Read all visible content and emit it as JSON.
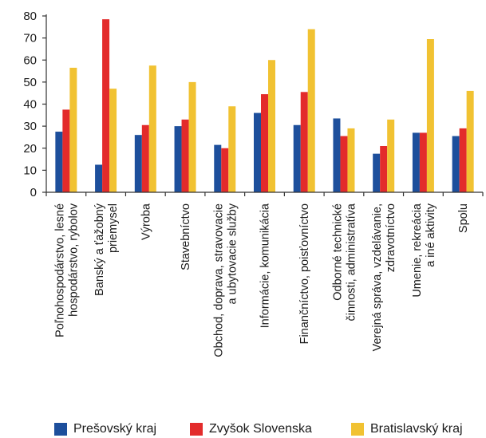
{
  "chart_data": {
    "type": "bar",
    "title": "",
    "xlabel": "",
    "ylabel": "",
    "ylim": [
      0,
      80
    ],
    "yticks": [
      0,
      10,
      20,
      30,
      40,
      50,
      60,
      70,
      80
    ],
    "grid": false,
    "legend_position": "bottom",
    "categories": [
      [
        "Poľnohospodárstvo, lesné",
        "hospodárstvo, rybolov"
      ],
      [
        "Banský a ťažobný",
        "priemysel"
      ],
      [
        "Výroba"
      ],
      [
        "Stavebníctvo"
      ],
      [
        "Obchod, doprava, stravovacie",
        "a ubytovacie služby"
      ],
      [
        "Informácie, komunikácia"
      ],
      [
        "Finančníctvo, poisťovníctvo"
      ],
      [
        "Odborné technické",
        "činnosti, administratíva"
      ],
      [
        "Verejná správa, vzdelávanie,",
        "zdravotníctvo"
      ],
      [
        "Umenie, rekreácia",
        "a iné aktivity"
      ],
      [
        "Spolu"
      ]
    ],
    "series": [
      {
        "name": "Prešovský kraj",
        "color": "#1d4f9c",
        "values": [
          27.5,
          12.5,
          26,
          30,
          21.5,
          36,
          30.5,
          33.5,
          17.5,
          27,
          25.5
        ]
      },
      {
        "name": "Zvyšok Slovenska",
        "color": "#e32b2b",
        "values": [
          37.5,
          78.5,
          30.5,
          33,
          20,
          44.5,
          45.5,
          25.5,
          21,
          27,
          29
        ]
      },
      {
        "name": "Bratislavský kraj",
        "color": "#f1c232",
        "values": [
          56.5,
          47,
          57.5,
          50,
          39,
          60,
          74,
          29,
          33,
          69.5,
          46
        ]
      }
    ]
  }
}
